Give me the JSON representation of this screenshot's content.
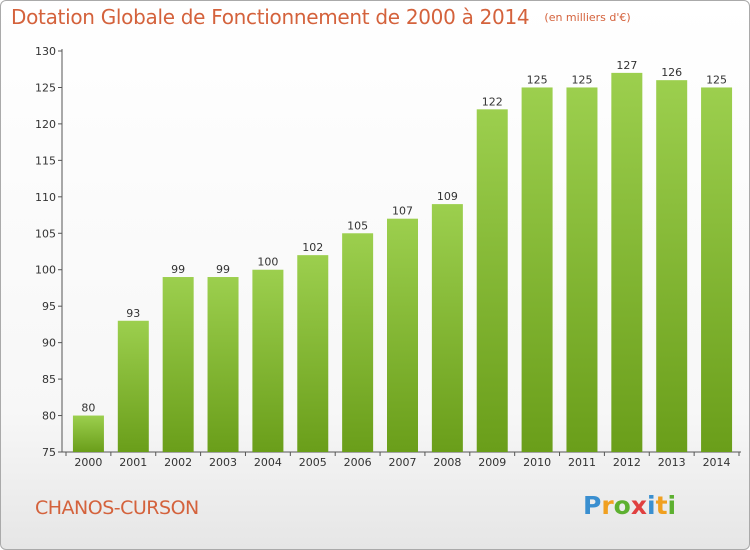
{
  "title": "Dotation Globale de Fonctionnement de 2000 à 2014",
  "unit_note": "(en milliers d'€)",
  "commune": "CHANOS-CURSON",
  "logo": {
    "letters": [
      "P",
      "r",
      "o",
      "x",
      "i",
      "t",
      "i"
    ],
    "colors": [
      "#3a8fd0",
      "#f0a020",
      "#5db030",
      "#e04040",
      "#3a8fd0",
      "#f0a020",
      "#5db030"
    ]
  },
  "colors": {
    "title": "#d4623c",
    "bar_top": "#9ccf4e",
    "bar_bottom": "#6a9e1a",
    "axis": "#555555",
    "grid": "#e0e0e0"
  },
  "chart_data": {
    "type": "bar",
    "categories": [
      "2000",
      "2001",
      "2002",
      "2003",
      "2004",
      "2005",
      "2006",
      "2007",
      "2008",
      "2009",
      "2010",
      "2011",
      "2012",
      "2013",
      "2014"
    ],
    "values": [
      80,
      93,
      99,
      99,
      100,
      102,
      105,
      107,
      109,
      122,
      125,
      125,
      127,
      126,
      125
    ],
    "title": "Dotation Globale de Fonctionnement de 2000 à 2014",
    "xlabel": "",
    "ylabel": "",
    "ylim": [
      75,
      130
    ],
    "yticks": [
      75,
      80,
      85,
      90,
      95,
      100,
      105,
      110,
      115,
      120,
      125,
      130
    ],
    "grid": false,
    "legend": "none"
  }
}
